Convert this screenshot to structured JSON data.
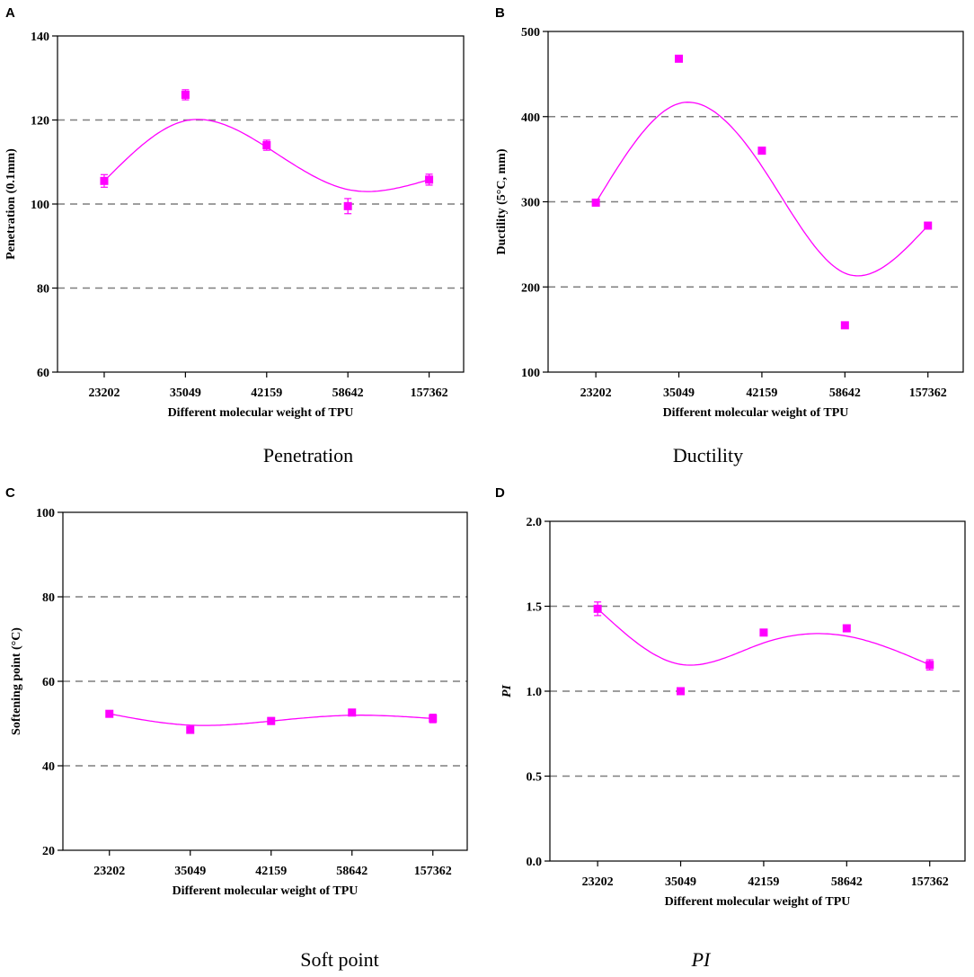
{
  "chart_data": [
    {
      "panel": "A",
      "type": "scatter",
      "caption": "Penetration",
      "caption_italic": false,
      "ylabel": "Penetration (0.1mm)",
      "ylabel_italic": false,
      "xlabel": "Different molecular weight of TPU",
      "categories": [
        "23202",
        "35049",
        "42159",
        "58642",
        "157362"
      ],
      "ylim": [
        60,
        140
      ],
      "yticks": [
        60,
        80,
        100,
        120,
        140
      ],
      "yticklabels": [
        "60",
        "80",
        "100",
        "120",
        "140"
      ],
      "gridlines": [
        80,
        100,
        120
      ],
      "series": [
        {
          "name": "Penetration",
          "values": [
            105.5,
            126,
            114,
            99.5,
            105.8
          ],
          "errors": [
            1.5,
            1.2,
            1.2,
            1.8,
            1.3
          ]
        }
      ],
      "marker_offsets": [
        0,
        0,
        0,
        0,
        0
      ],
      "fit_curve": true,
      "color": "#ff00ff"
    },
    {
      "panel": "B",
      "type": "scatter",
      "caption": "Ductility",
      "caption_italic": false,
      "ylabel": "Ductility (5°C, mm)",
      "ylabel_italic": false,
      "xlabel": "Different molecular weight of TPU",
      "categories": [
        "23202",
        "35049",
        "42159",
        "58642",
        "157362"
      ],
      "ylim": [
        100,
        500
      ],
      "yticks": [
        100,
        200,
        300,
        400,
        500
      ],
      "yticklabels": [
        "100",
        "200",
        "300",
        "400",
        "500"
      ],
      "gridlines": [
        200,
        300,
        400
      ],
      "series": [
        {
          "name": "Ductility",
          "values": [
            299,
            468,
            360,
            155,
            272
          ],
          "errors": [
            0,
            0,
            0,
            0,
            0
          ]
        }
      ],
      "marker_offsets": [
        0,
        0,
        0,
        0,
        0
      ],
      "fit_curve": true,
      "color": "#ff00ff"
    },
    {
      "panel": "C",
      "type": "scatter",
      "caption": "Soft point",
      "caption_italic": false,
      "ylabel": "Softening point (°C)",
      "ylabel_italic": false,
      "xlabel": "Different molecular weight of TPU",
      "categories": [
        "23202",
        "35049",
        "42159",
        "58642",
        "157362"
      ],
      "ylim": [
        20,
        100
      ],
      "yticks": [
        20,
        40,
        60,
        80,
        100
      ],
      "yticklabels": [
        "20",
        "40",
        "60",
        "80",
        "100"
      ],
      "gridlines": [
        40,
        60,
        80
      ],
      "series": [
        {
          "name": "Softening point",
          "values": [
            52.3,
            48.5,
            50.6,
            52.6,
            51.2
          ],
          "errors": [
            0.5,
            0.5,
            0.8,
            0.5,
            1.0
          ]
        }
      ],
      "marker_offsets": [
        0,
        0,
        0,
        0,
        0
      ],
      "fit_curve": true,
      "color": "#ff00ff"
    },
    {
      "panel": "D",
      "type": "scatter",
      "caption": "PI",
      "caption_italic": true,
      "ylabel": "PI",
      "ylabel_italic": true,
      "xlabel": "Different molecular weight of TPU",
      "categories": [
        "23202",
        "35049",
        "42159",
        "58642",
        "157362"
      ],
      "ylim": [
        0.0,
        2.0
      ],
      "yticks": [
        0.0,
        0.5,
        1.0,
        1.5,
        2.0
      ],
      "yticklabels": [
        "0.0",
        "0.5",
        "1.0",
        "1.5",
        "2.0"
      ],
      "gridlines": [
        0.5,
        1.0,
        1.5
      ],
      "series": [
        {
          "name": "PI",
          "values": [
            1.485,
            1.0,
            1.345,
            1.37,
            1.155
          ],
          "errors": [
            0.04,
            0.01,
            0.01,
            0.02,
            0.03
          ]
        }
      ],
      "marker_offsets": [
        0,
        0,
        0,
        0,
        0
      ],
      "fit_curve": true,
      "color": "#ff00ff"
    }
  ]
}
